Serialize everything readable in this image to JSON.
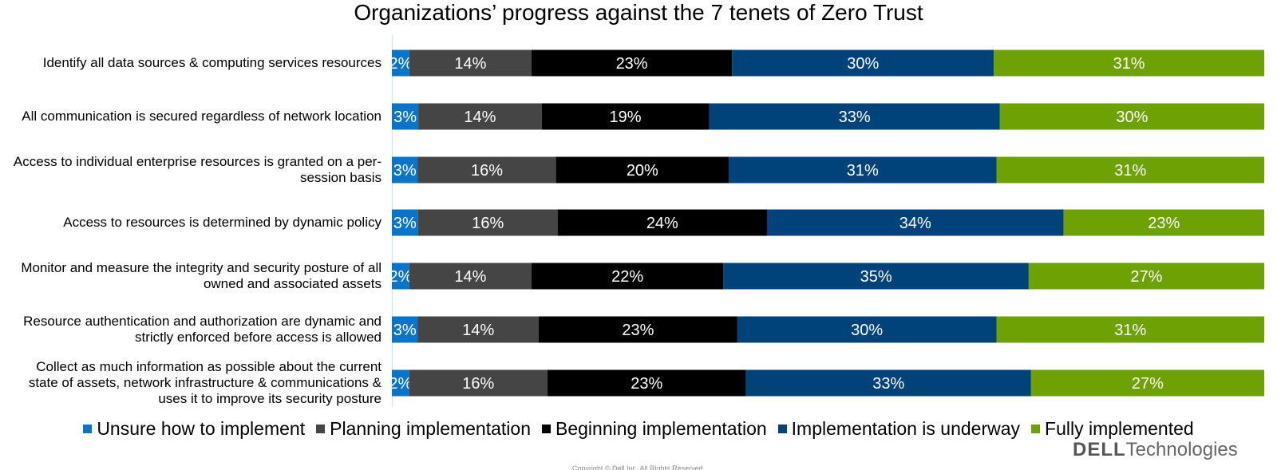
{
  "chart_data": {
    "type": "bar",
    "orientation": "horizontal",
    "stacked": true,
    "title": "Organizations’ progress against the 7 tenets of Zero Trust",
    "categories": [
      "Identify all data sources & computing services resources",
      "All communication is secured regardless of network location",
      "Access to individual enterprise resources is granted on a per-session basis",
      "Access to resources is determined by dynamic policy",
      "Monitor and measure the integrity and security posture of all owned and associated assets",
      "Resource authentication and authorization are dynamic and strictly enforced before access is allowed",
      "Collect as much information as possible about the current state of assets, network infrastructure & communications & uses it to improve its security posture"
    ],
    "series": [
      {
        "name": "Unsure how to implement",
        "color": "#0b74c8",
        "values": [
          2,
          3,
          3,
          3,
          2,
          3,
          2
        ]
      },
      {
        "name": "Planning implementation",
        "color": "#454545",
        "values": [
          14,
          14,
          16,
          16,
          14,
          14,
          16
        ]
      },
      {
        "name": "Beginning implementation",
        "color": "#000000",
        "values": [
          23,
          19,
          20,
          24,
          22,
          23,
          23
        ]
      },
      {
        "name": "Implementation is underway",
        "color": "#00437a",
        "values": [
          30,
          33,
          31,
          34,
          35,
          30,
          33
        ]
      },
      {
        "name": "Fully implemented",
        "color": "#6ea204",
        "values": [
          31,
          30,
          31,
          23,
          27,
          31,
          27
        ]
      }
    ],
    "value_suffix": "%",
    "xlabel": "",
    "ylabel": "",
    "grid": false,
    "legend": "bottom"
  },
  "brand": {
    "dell": "DELL",
    "technologies": "Technologies"
  },
  "footer": "Copyright © Dell Inc. All Rights Reserved."
}
